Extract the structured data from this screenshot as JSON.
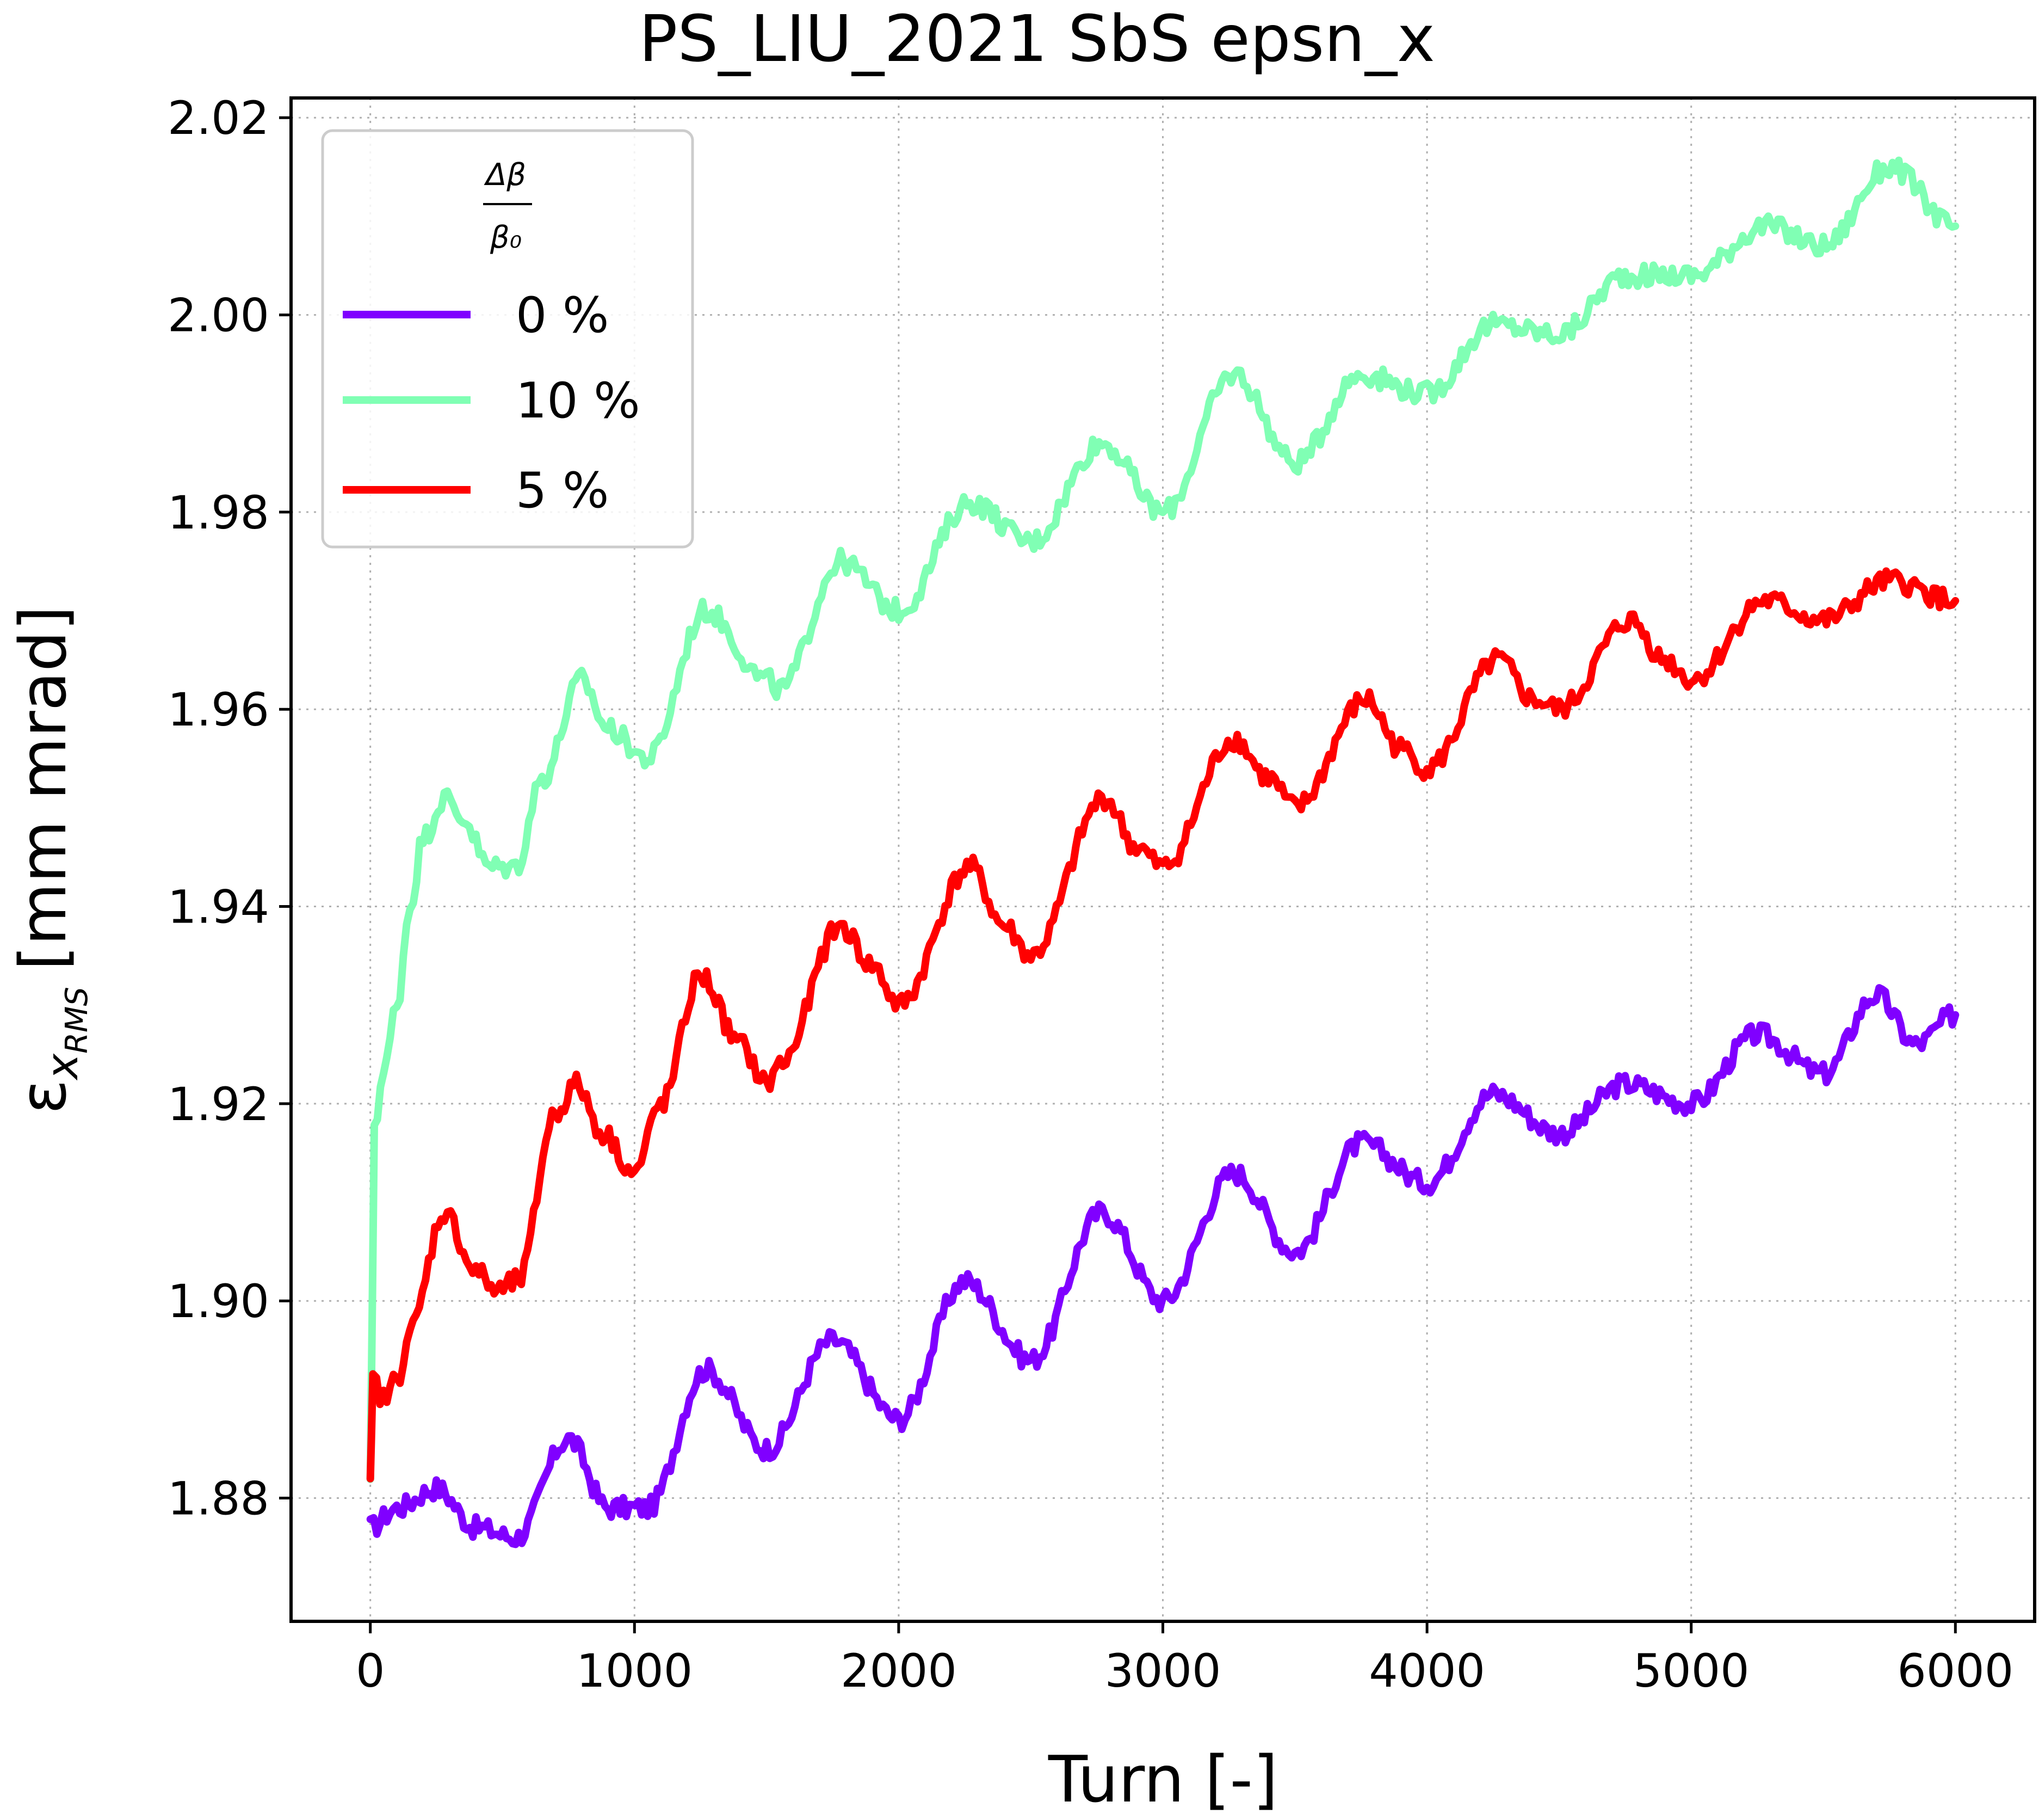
{
  "chart_data": {
    "type": "line",
    "title": "PS_LIU_2021 SbS epsn_x",
    "xlabel": "Turn [-]",
    "ylabel": "ε x_RMS [mm mrad]",
    "ylabel_main": "ε",
    "ylabel_sub": "x",
    "ylabel_subsub": "RMS",
    "ylabel_unit": "[mm mrad]",
    "xlim": [
      -300,
      6300
    ],
    "ylim": [
      1.8675,
      2.022
    ],
    "xticks": [
      0,
      1000,
      2000,
      3000,
      4000,
      5000,
      6000
    ],
    "xtick_labels": [
      "0",
      "1000",
      "2000",
      "3000",
      "4000",
      "5000",
      "6000"
    ],
    "yticks": [
      1.88,
      1.9,
      1.92,
      1.94,
      1.96,
      1.98,
      2.0,
      2.02
    ],
    "ytick_labels": [
      "1.88",
      "1.90",
      "1.92",
      "1.94",
      "1.96",
      "1.98",
      "2.00",
      "2.02"
    ],
    "grid": true,
    "legend": {
      "placement": "top-left",
      "title_num": "Δβ",
      "title_den": "β₀"
    },
    "series": [
      {
        "name": "0 %",
        "color": "#8000ff",
        "x": [
          0,
          100,
          250,
          400,
          550,
          750,
          900,
          1050,
          1270,
          1500,
          1750,
          2000,
          2250,
          2500,
          2770,
          3000,
          3270,
          3500,
          3750,
          4000,
          4250,
          4500,
          4750,
          5000,
          5250,
          5500,
          5700,
          5850,
          6000
        ],
        "y": [
          1.877,
          1.879,
          1.881,
          1.877,
          1.876,
          1.886,
          1.879,
          1.879,
          1.893,
          1.885,
          1.896,
          1.888,
          1.902,
          1.894,
          1.909,
          1.9,
          1.913,
          1.905,
          1.916,
          1.912,
          1.921,
          1.917,
          1.922,
          1.92,
          1.927,
          1.923,
          1.931,
          1.926,
          1.929
        ]
      },
      {
        "name": "10 %",
        "color": "#80ffb4",
        "x": [
          0,
          15,
          50,
          100,
          150,
          200,
          280,
          350,
          450,
          550,
          650,
          800,
          900,
          1050,
          1270,
          1500,
          1550,
          1780,
          2000,
          2270,
          2500,
          2770,
          3000,
          3270,
          3500,
          3750,
          4000,
          4250,
          4500,
          4750,
          5000,
          5280,
          5500,
          5750,
          6000
        ],
        "y": [
          1.881,
          1.918,
          1.923,
          1.93,
          1.94,
          1.947,
          1.951,
          1.949,
          1.944,
          1.944,
          1.953,
          1.963,
          1.958,
          1.955,
          1.97,
          1.963,
          1.962,
          1.975,
          1.97,
          1.981,
          1.977,
          1.987,
          1.98,
          1.994,
          1.985,
          1.994,
          1.992,
          1.999,
          1.998,
          2.004,
          2.004,
          2.009,
          2.007,
          2.015,
          2.009
        ]
      },
      {
        "name": "5 %",
        "color": "#ff0000",
        "x": [
          0,
          10,
          50,
          100,
          150,
          280,
          400,
          480,
          560,
          700,
          780,
          880,
          1000,
          1100,
          1250,
          1400,
          1500,
          1550,
          1780,
          1900,
          2000,
          2270,
          2400,
          2500,
          2780,
          2900,
          3000,
          3270,
          3400,
          3500,
          3770,
          3900,
          4000,
          4270,
          4400,
          4500,
          4770,
          4900,
          5000,
          5280,
          5500,
          5750,
          6000
        ],
        "y": [
          1.881,
          1.892,
          1.89,
          1.892,
          1.897,
          1.909,
          1.903,
          1.901,
          1.902,
          1.919,
          1.922,
          1.917,
          1.913,
          1.92,
          1.933,
          1.926,
          1.922,
          1.924,
          1.938,
          1.934,
          1.93,
          1.944,
          1.938,
          1.935,
          1.951,
          1.946,
          1.944,
          1.957,
          1.953,
          1.95,
          1.961,
          1.956,
          1.954,
          1.965,
          1.961,
          1.96,
          1.969,
          1.965,
          1.963,
          1.971,
          1.969,
          1.973,
          1.971
        ]
      }
    ],
    "legend_order": [
      0,
      1,
      2
    ]
  }
}
